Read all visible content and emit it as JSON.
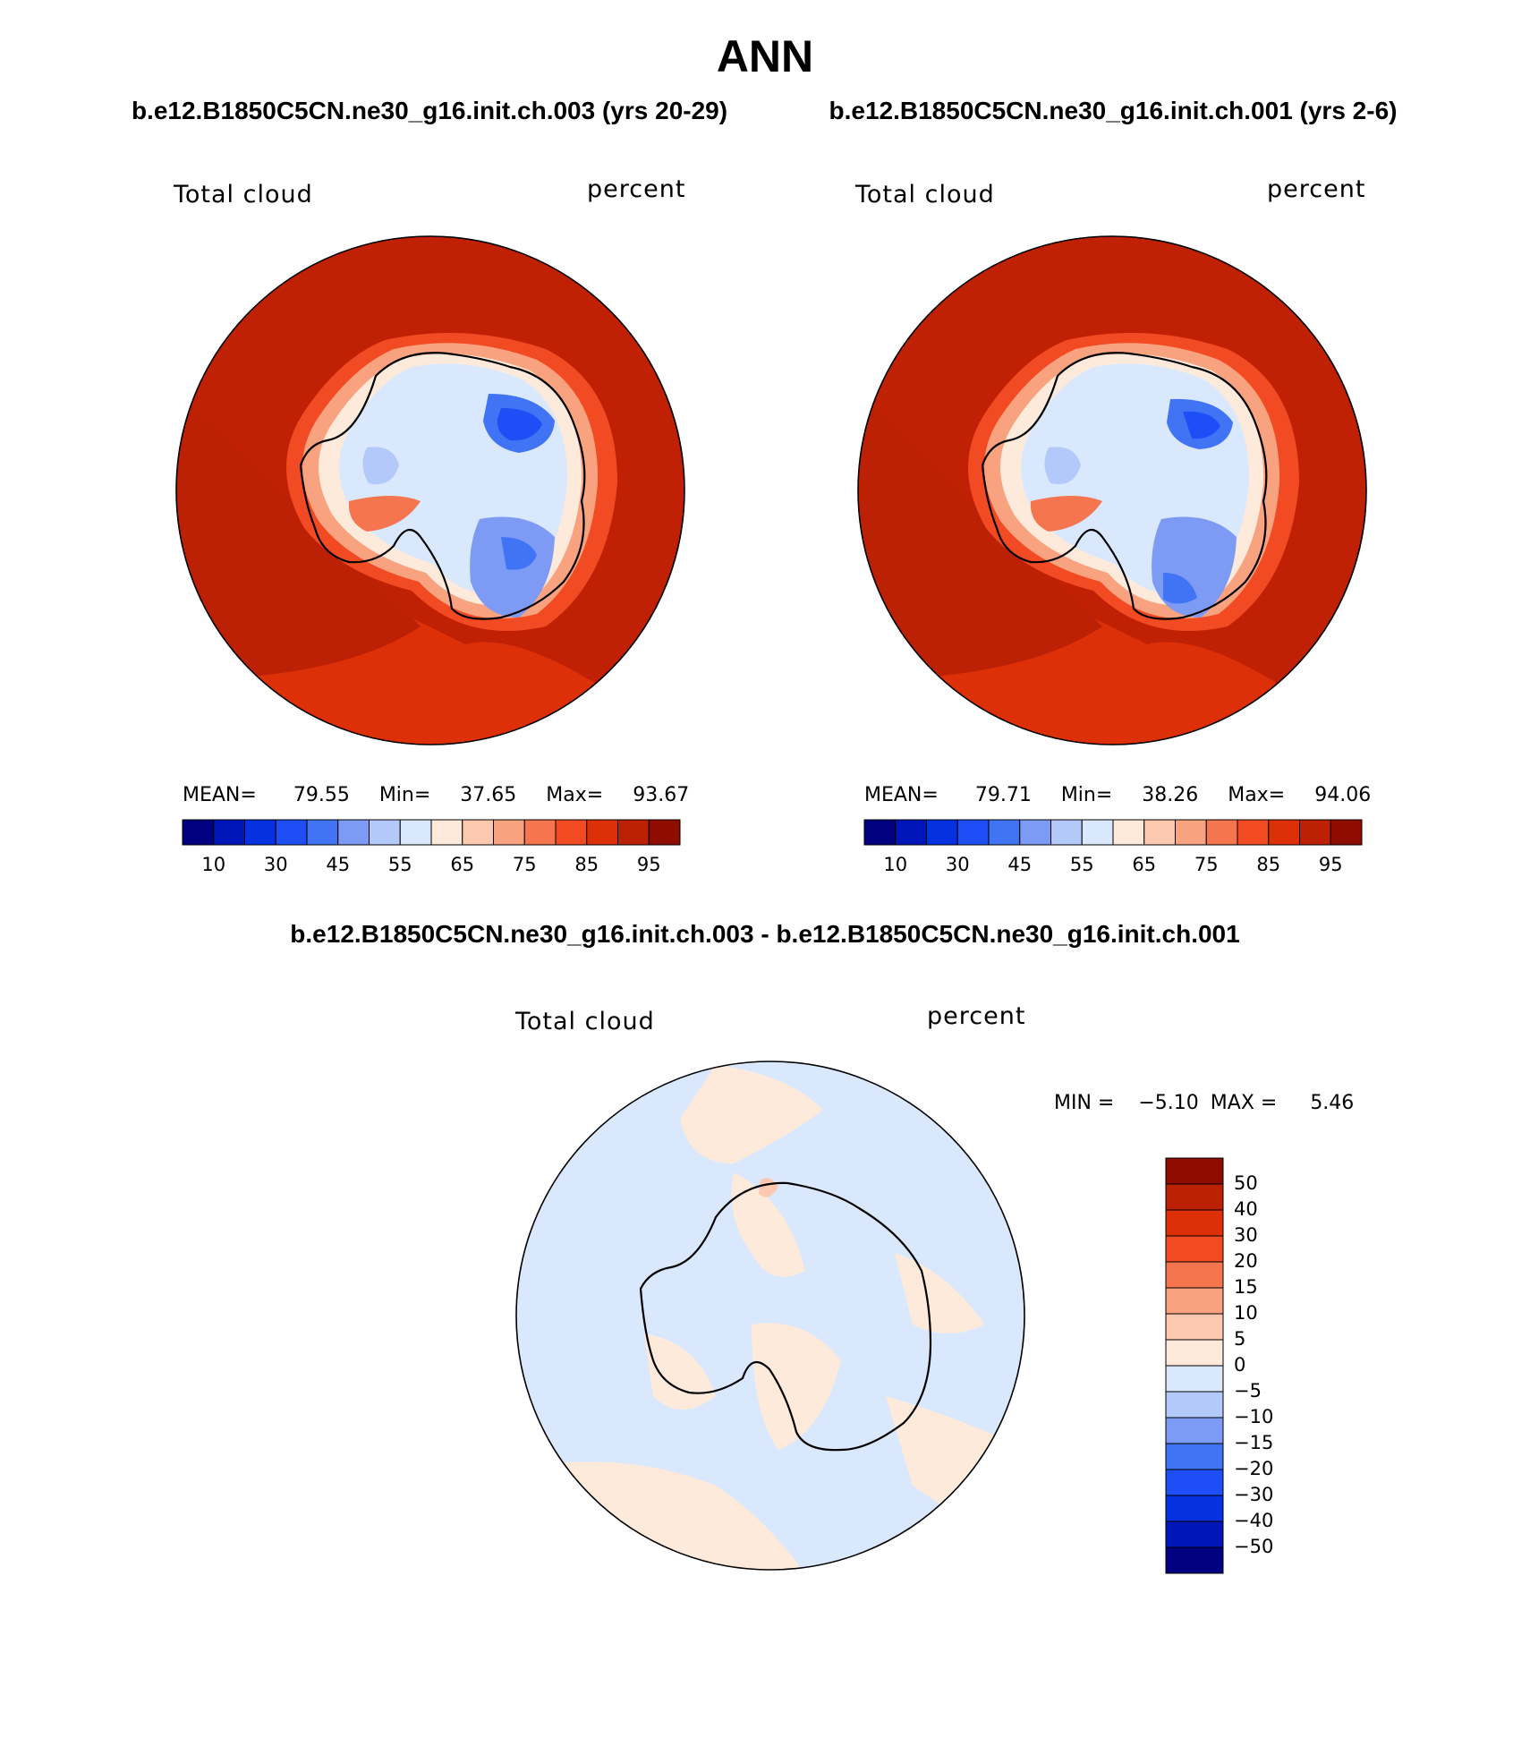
{
  "title": "ANN",
  "panels": [
    {
      "case_title": "b.e12.B1850C5CN.ne30_g16.init.ch.003 (yrs 20-29)",
      "variable": "Total cloud",
      "units": "percent",
      "stats": {
        "mean_label": "MEAN=",
        "mean": "79.55",
        "min_label": "Min=",
        "min": "37.65",
        "max_label": "Max=",
        "max": "93.67"
      }
    },
    {
      "case_title": "b.e12.B1850C5CN.ne30_g16.init.ch.001 (yrs 2-6)",
      "variable": "Total cloud",
      "units": "percent",
      "stats": {
        "mean_label": "MEAN=",
        "mean": "79.71",
        "min_label": "Min=",
        "min": "38.26",
        "max_label": "Max=",
        "max": "94.06"
      }
    }
  ],
  "colorbar": {
    "colors": [
      "#000080",
      "#0016b8",
      "#0531e0",
      "#1e4ef5",
      "#4173f5",
      "#7d9bf5",
      "#b3c9fa",
      "#d9e8fc",
      "#feeada",
      "#fcc8b0",
      "#f8a27f",
      "#f5754f",
      "#f24a22",
      "#de3008",
      "#bd2105",
      "#8e0c00"
    ],
    "tick_labels": [
      "10",
      "30",
      "45",
      "55",
      "65",
      "75",
      "85",
      "95"
    ]
  },
  "difference": {
    "title": "b.e12.B1850C5CN.ne30_g16.init.ch.003 - b.e12.B1850C5CN.ne30_g16.init.ch.001",
    "variable": "Total cloud",
    "units": "percent",
    "min_label": "MIN =",
    "min": "−5.10",
    "max_label": "MAX =",
    "max": "5.46",
    "colorbar": {
      "colors": [
        "#8e0c00",
        "#bd2105",
        "#de3008",
        "#f24a22",
        "#f5754f",
        "#f8a27f",
        "#fcc8b0",
        "#feeada",
        "#d9e8fc",
        "#b3c9fa",
        "#7d9bf5",
        "#4173f5",
        "#1e4ef5",
        "#0531e0",
        "#0016b8",
        "#000080"
      ],
      "tick_labels": [
        "50",
        "40",
        "30",
        "20",
        "15",
        "10",
        "5",
        "0",
        "−5",
        "−10",
        "−15",
        "−20",
        "−30",
        "−40",
        "−50"
      ]
    }
  }
}
